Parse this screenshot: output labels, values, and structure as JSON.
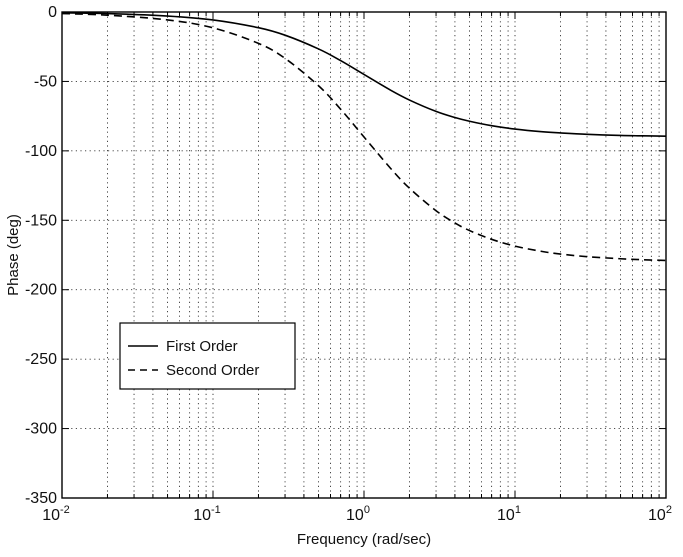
{
  "chart_data": {
    "type": "line",
    "xlabel": "Frequency (rad/sec)",
    "ylabel": "Phase (deg)",
    "xscale": "log",
    "xlim": [
      0.01,
      100
    ],
    "ylim": [
      -350,
      0
    ],
    "grid": true,
    "legend_position": "left, lower-middle",
    "x_ticks": [
      {
        "value": 0.01,
        "base": "10",
        "exp": "-2"
      },
      {
        "value": 0.1,
        "base": "10",
        "exp": "-1"
      },
      {
        "value": 1,
        "base": "10",
        "exp": "0"
      },
      {
        "value": 10,
        "base": "10",
        "exp": "1"
      },
      {
        "value": 100,
        "base": "10",
        "exp": "2"
      }
    ],
    "y_ticks": [
      0,
      -50,
      -100,
      -150,
      -200,
      -250,
      -300,
      -350
    ],
    "series": [
      {
        "name": "First Order",
        "style": "solid",
        "color": "#000000",
        "x": [
          0.01,
          0.02,
          0.05,
          0.1,
          0.2,
          0.3,
          0.5,
          0.7,
          1,
          1.5,
          2,
          3,
          4,
          5,
          7,
          10,
          15,
          20,
          30,
          50,
          70,
          100
        ],
        "y": [
          -0.6,
          -1.1,
          -2.9,
          -5.7,
          -11.3,
          -16.7,
          -26.6,
          -35.0,
          -45.0,
          -56.3,
          -63.4,
          -71.6,
          -76.0,
          -78.7,
          -81.9,
          -84.3,
          -86.2,
          -87.1,
          -88.1,
          -88.9,
          -89.2,
          -89.4
        ]
      },
      {
        "name": "Second Order",
        "style": "dashed",
        "color": "#000000",
        "x": [
          0.01,
          0.02,
          0.05,
          0.1,
          0.2,
          0.3,
          0.5,
          0.7,
          1,
          1.5,
          2,
          3,
          4,
          5,
          7,
          10,
          15,
          20,
          30,
          50,
          70,
          100
        ],
        "y": [
          -1.1,
          -2.3,
          -5.7,
          -11.4,
          -22.6,
          -33.4,
          -53.1,
          -70.0,
          -90.0,
          -112.6,
          -126.9,
          -143.1,
          -151.9,
          -157.4,
          -163.7,
          -168.6,
          -172.4,
          -174.3,
          -176.2,
          -177.7,
          -178.4,
          -178.9
        ]
      }
    ],
    "legend": [
      "First Order",
      "Second Order"
    ]
  }
}
